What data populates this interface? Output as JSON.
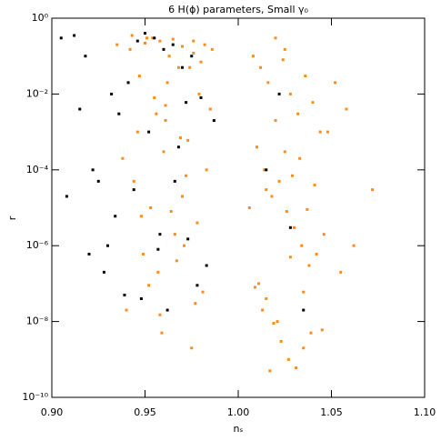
{
  "chart_data": {
    "type": "scatter",
    "title": "6 H(ϕ) parameters, Small γ₀",
    "x_label": "nₛ",
    "y_label": "r",
    "xlim": [
      0.9,
      1.1
    ],
    "xticks": [
      {
        "value": 0.9,
        "label": "0.90"
      },
      {
        "value": 0.95,
        "label": "0.95"
      },
      {
        "value": 1.0,
        "label": "1.00"
      },
      {
        "value": 1.05,
        "label": "1.05"
      },
      {
        "value": 1.1,
        "label": "1.10"
      }
    ],
    "ylim": [
      1e-10,
      1
    ],
    "ylog": true,
    "yticks": [
      {
        "value": 1,
        "label": "10⁰"
      },
      {
        "value": 0.01,
        "label": "10⁻²"
      },
      {
        "value": 0.0001,
        "label": "10⁻⁴"
      },
      {
        "value": 1e-06,
        "label": "10⁻⁶"
      },
      {
        "value": 1e-08,
        "label": "10⁻⁸"
      },
      {
        "value": 1e-10,
        "label": "10⁻¹⁰"
      }
    ],
    "grid": false,
    "series": [
      {
        "color": "#ff8c1a",
        "x": [
          0.935,
          0.942,
          0.951,
          0.958,
          0.963,
          0.97,
          0.976,
          0.982,
          0.947,
          0.955,
          0.961,
          0.968,
          0.973,
          0.979,
          0.985,
          0.938,
          0.944,
          0.953,
          0.96,
          0.966,
          0.972,
          0.978,
          0.983,
          0.949,
          0.957,
          0.964,
          0.971,
          0.977,
          0.94,
          0.952,
          0.959,
          0.967,
          0.975,
          0.981,
          0.946,
          0.956,
          0.962,
          0.969,
          0.974,
          0.98,
          0.95,
          0.965,
          0.943,
          0.954,
          0.976,
          0.986,
          0.961,
          0.97,
          0.948,
          0.958,
          1.008,
          1.012,
          1.016,
          1.02,
          1.024,
          1.028,
          1.032,
          1.036,
          1.04,
          1.044,
          1.01,
          1.014,
          1.018,
          1.022,
          1.026,
          1.03,
          1.034,
          1.038,
          1.042,
          1.046,
          1.011,
          1.015,
          1.019,
          1.023,
          1.027,
          1.031,
          1.035,
          1.039,
          1.009,
          1.013,
          1.017,
          1.021,
          1.025,
          1.029,
          1.033,
          1.037,
          1.041,
          1.048,
          1.052,
          1.058,
          1.072,
          1.062,
          1.055,
          1.006,
          1.02,
          1.028,
          1.035,
          1.015,
          1.025,
          1.045
        ],
        "values": [
          0.2,
          0.15,
          0.3,
          0.25,
          0.1,
          0.18,
          0.12,
          0.2,
          0.03,
          0.008,
          0.002,
          0.05,
          0.0006,
          0.01,
          0.004,
          0.0002,
          5e-05,
          1e-05,
          0.0003,
          2e-06,
          7e-05,
          4e-06,
          0.0001,
          6e-07,
          2e-07,
          8e-06,
          1e-06,
          3e-08,
          2e-08,
          9e-08,
          5e-09,
          4e-07,
          2e-09,
          6e-08,
          0.001,
          0.003,
          0.02,
          0.0007,
          0.05,
          0.07,
          0.22,
          0.28,
          0.35,
          0.3,
          0.25,
          0.15,
          0.005,
          2e-05,
          6e-06,
          1.5e-08,
          0.1,
          0.05,
          0.02,
          0.3,
          0.08,
          0.01,
          0.003,
          0.03,
          0.006,
          0.001,
          0.0004,
          0.0001,
          2e-05,
          5e-05,
          8e-06,
          3e-06,
          1e-06,
          3e-07,
          6e-07,
          2e-06,
          1e-07,
          4e-08,
          9e-09,
          3e-09,
          1e-09,
          6e-10,
          2e-09,
          5e-09,
          8e-08,
          2e-08,
          5e-10,
          1e-08,
          0.0003,
          7e-05,
          0.0002,
          9e-06,
          4e-05,
          0.001,
          0.02,
          0.004,
          3e-05,
          1e-06,
          2e-07,
          1e-05,
          0.002,
          5e-07,
          6e-08,
          3e-05,
          0.15,
          6e-09
        ]
      },
      {
        "color": "#000000",
        "x": [
          0.905,
          0.912,
          0.918,
          0.925,
          0.93,
          0.936,
          0.941,
          0.946,
          0.95,
          0.955,
          0.96,
          0.965,
          0.97,
          0.975,
          0.98,
          0.987,
          0.908,
          0.915,
          0.922,
          0.928,
          0.934,
          0.939,
          0.944,
          0.952,
          0.957,
          0.962,
          0.968,
          0.973,
          0.978,
          0.983,
          0.92,
          0.932,
          0.948,
          0.958,
          0.966,
          0.972,
          1.015,
          1.028,
          1.035,
          1.022
        ],
        "values": [
          0.3,
          0.35,
          0.1,
          5e-05,
          1e-06,
          0.003,
          0.02,
          0.25,
          0.4,
          0.3,
          0.15,
          0.2,
          0.05,
          0.1,
          0.008,
          0.002,
          2e-05,
          0.004,
          0.0001,
          2e-07,
          6e-06,
          5e-08,
          3e-05,
          0.001,
          8e-07,
          2e-08,
          0.0004,
          1.5e-06,
          9e-08,
          3e-07,
          6e-07,
          0.01,
          4e-08,
          2e-06,
          5e-05,
          0.006,
          0.0001,
          3e-06,
          2e-08,
          0.01
        ]
      }
    ]
  }
}
